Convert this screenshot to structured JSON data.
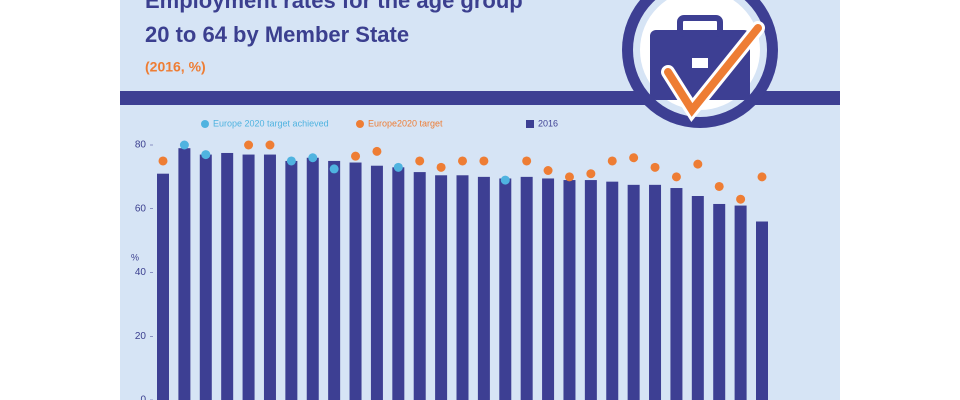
{
  "chart_data": {
    "type": "bar",
    "title": "Employment rates for the age group",
    "subtitle": "20 to 64 by Member State",
    "note": "(2016, %)",
    "y_label": "%",
    "categories": [
      null,
      null,
      null,
      null,
      null,
      null,
      null,
      null,
      null,
      null,
      null,
      null,
      null,
      null,
      null,
      null,
      null,
      null,
      null,
      null,
      null,
      null,
      null,
      null,
      null,
      null,
      null,
      null,
      null
    ],
    "series": [
      {
        "name": "Europe 2020 target achieved",
        "type": "dot",
        "color": "#4fb3e0",
        "values": [
          null,
          80,
          77,
          null,
          null,
          null,
          75,
          76,
          72.5,
          null,
          null,
          73,
          null,
          null,
          null,
          null,
          69,
          null,
          null,
          null,
          null,
          null,
          null,
          null,
          null,
          null,
          null,
          null,
          null
        ]
      },
      {
        "name": "Europe2020 target",
        "type": "dot",
        "color": "#ee7d34",
        "values": [
          75,
          null,
          null,
          null,
          80,
          80,
          null,
          null,
          null,
          76.5,
          78,
          null,
          75,
          73,
          75,
          75,
          null,
          75,
          72,
          70,
          71,
          75,
          76,
          73,
          70,
          74,
          67,
          63,
          70
        ]
      },
      {
        "name": "2016",
        "type": "bar",
        "color": "#3d3f93",
        "values": [
          71,
          79,
          77,
          77.5,
          77,
          77,
          75,
          76,
          75,
          74.5,
          73.5,
          73,
          71.5,
          70.5,
          70.5,
          70,
          69.5,
          70,
          69.5,
          69,
          69,
          68.5,
          67.5,
          67.5,
          66.5,
          64,
          61.5,
          61,
          56
        ]
      }
    ],
    "ylim": [
      0,
      80
    ],
    "yticks": [
      0,
      20,
      40,
      60,
      80
    ]
  }
}
